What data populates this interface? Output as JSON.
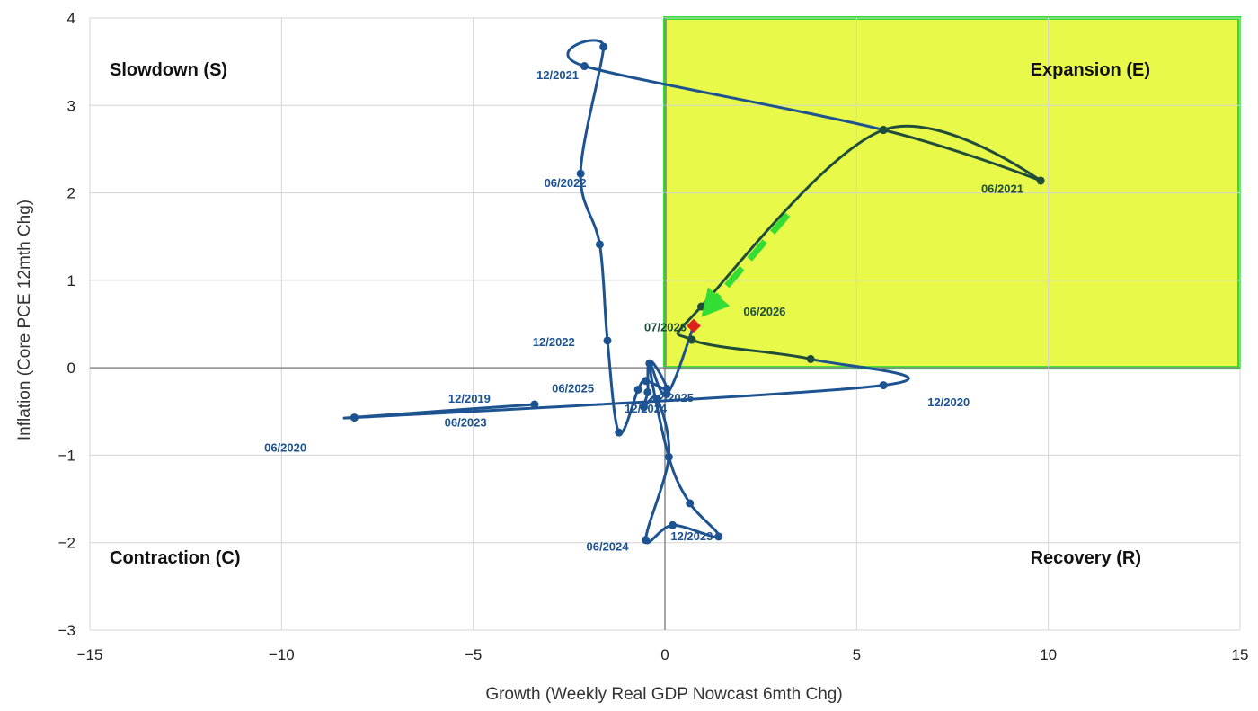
{
  "chart_data": {
    "type": "line",
    "xlabel": "Growth (Weekly Real GDP Nowcast 6mth Chg)",
    "ylabel": "Inflation (Core PCE 12mth Chg)",
    "xlim": [
      -15,
      15
    ],
    "ylim": [
      -3,
      4
    ],
    "xticks": [
      -15,
      -10,
      -5,
      0,
      5,
      10,
      15
    ],
    "yticks": [
      -3,
      -2,
      -1,
      0,
      1,
      2,
      3,
      4
    ],
    "xtick_labels": [
      "−15",
      "−10",
      "−5",
      "0",
      "5",
      "10",
      "15"
    ],
    "ytick_labels": [
      "−3",
      "−2",
      "−1",
      "0",
      "1",
      "2",
      "3",
      "4"
    ],
    "grid": true,
    "legend": "none",
    "colors": {
      "series": "#1d5391",
      "highlight_line": "#1f4d3a",
      "highlight_fill": "#e8f94a",
      "highlight_border": "#2ee02e",
      "arrow": "#33dd33",
      "current_point": "#e0201e",
      "label": "#1d5391",
      "highlight_label": "#1f4d3a"
    },
    "quadrants": [
      {
        "name": "slowdown",
        "label": "Slowdown (S)"
      },
      {
        "name": "expansion",
        "label": "Expansion (E)"
      },
      {
        "name": "contraction",
        "label": "Contraction (C)"
      },
      {
        "name": "recovery",
        "label": "Recovery (R)"
      }
    ],
    "highlight_region": {
      "x": [
        0,
        15
      ],
      "y": [
        0,
        4
      ]
    },
    "series": [
      {
        "x": [
          -3.4,
          -8.1,
          5.7,
          3.8,
          0.7,
          0.95,
          5.7,
          9.8,
          5.7,
          -2.1,
          -1.6,
          -2.2,
          -1.7,
          -1.5,
          -1.2,
          -0.7,
          -0.5,
          0.05,
          -0.4,
          0.1,
          0.65,
          1.4,
          0.2,
          -0.5,
          0.1,
          -0.2,
          -0.55,
          -0.45,
          -0.4,
          0.05,
          0.75
        ],
        "y": [
          -0.42,
          -0.57,
          -0.2,
          0.1,
          0.32,
          0.7,
          2.72,
          2.14,
          2.72,
          3.45,
          3.67,
          2.22,
          1.41,
          0.31,
          -0.74,
          -0.25,
          -0.15,
          -0.24,
          0.05,
          -1.02,
          -1.55,
          -1.93,
          -1.8,
          -1.97,
          -1.02,
          -0.36,
          -0.45,
          -0.28,
          0.05,
          -0.3,
          0.48
        ]
      }
    ],
    "current_point": {
      "x": 0.75,
      "y": 0.48,
      "label": "07/2026"
    },
    "labels": [
      {
        "text": "12/2019",
        "x": -5.1,
        "y": -0.4
      },
      {
        "text": "06/2020",
        "x": -9.9,
        "y": -0.96
      },
      {
        "text": "12/2020",
        "x": 7.4,
        "y": -0.44
      },
      {
        "text": "06/2021",
        "x": 8.8,
        "y": 2.0
      },
      {
        "text": "12/2021",
        "x": -2.8,
        "y": 3.3
      },
      {
        "text": "06/2022",
        "x": -2.6,
        "y": 2.07
      },
      {
        "text": "12/2022",
        "x": -2.9,
        "y": 0.25
      },
      {
        "text": "06/2023",
        "x": -5.2,
        "y": -0.67
      },
      {
        "text": "12/2023",
        "x": 0.7,
        "y": -1.97
      },
      {
        "text": "06/2024",
        "x": -1.5,
        "y": -2.09
      },
      {
        "text": "12/2024",
        "x": -0.5,
        "y": -0.51
      },
      {
        "text": "06/2025",
        "x": -2.4,
        "y": -0.28
      },
      {
        "text": "12/2025",
        "x": 0.2,
        "y": -0.39
      },
      {
        "text": "06/2026",
        "x": 2.6,
        "y": 0.6
      }
    ]
  }
}
